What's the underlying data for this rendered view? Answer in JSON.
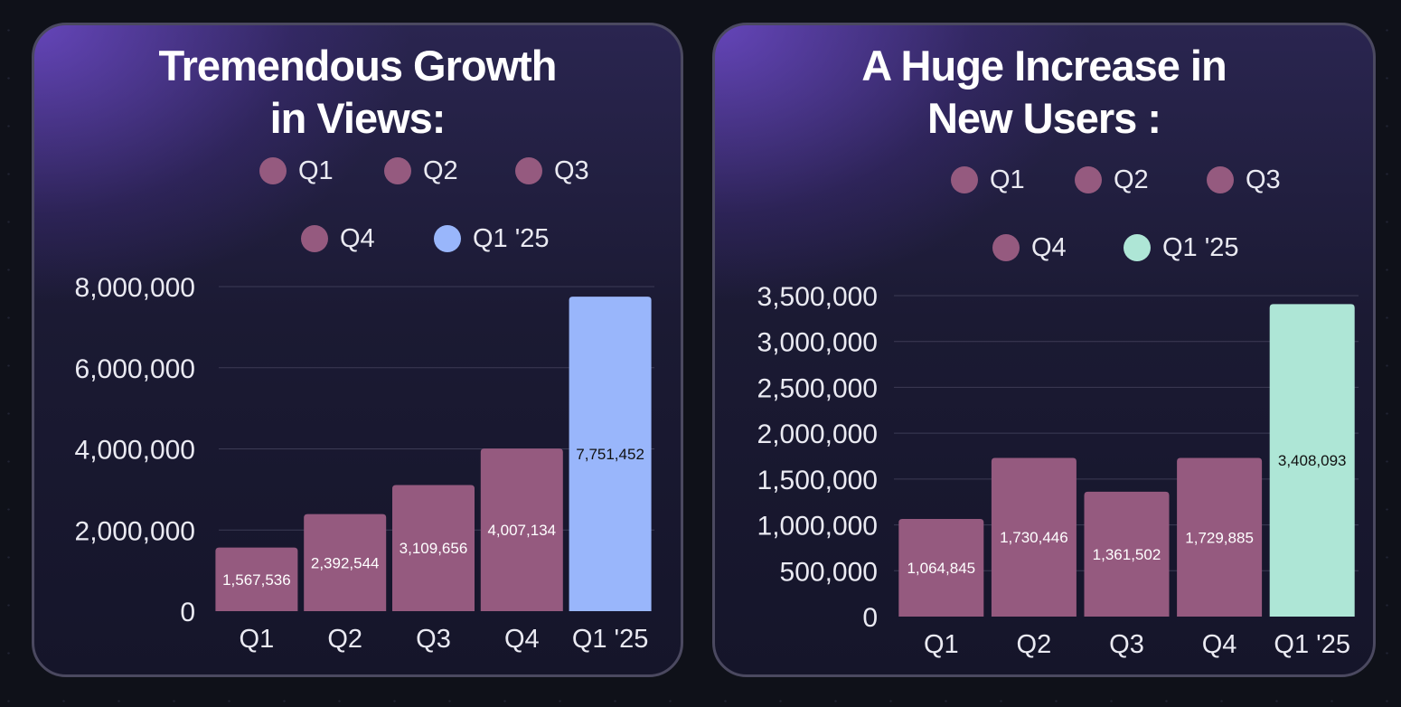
{
  "colors": {
    "bar": "#955a7f",
    "highlight_left": "#99b6fb",
    "highlight_right": "#aee6d6",
    "grid": "#3c3b55"
  },
  "chart_data": [
    {
      "type": "bar",
      "title_line1": "Tremendous Growth",
      "title_line2": "in Views:",
      "categories": [
        "Q1",
        "Q2",
        "Q3",
        "Q4",
        "Q1 '25"
      ],
      "values": [
        1567536,
        2392544,
        3109656,
        4007134,
        7751452
      ],
      "data_labels": [
        "1,567,536",
        "2,392,544",
        "3,109,656",
        "4,007,134",
        "7,751,452"
      ],
      "ylim": [
        0,
        8000000
      ],
      "yticks": [
        "0",
        "2,000,000",
        "4,000,000",
        "6,000,000",
        "8,000,000"
      ],
      "ytick_values": [
        0,
        2000000,
        4000000,
        6000000,
        8000000
      ],
      "legend": [
        "Q1",
        "Q2",
        "Q3",
        "Q4",
        "Q1 '25"
      ],
      "legend_placement": "top",
      "grid": true
    },
    {
      "type": "bar",
      "title_line1": "A Huge Increase in",
      "title_line2": "New Users :",
      "categories": [
        "Q1",
        "Q2",
        "Q3",
        "Q4",
        "Q1 '25"
      ],
      "values": [
        1064845,
        1730446,
        1361502,
        1729885,
        3408093
      ],
      "data_labels": [
        "1,064,845",
        "1,730,446",
        "1,361,502",
        "1,729,885",
        "3,408,093"
      ],
      "ylim": [
        0,
        3500000
      ],
      "yticks": [
        "0",
        "500,000",
        "1,000,000",
        "1,500,000",
        "2,000,000",
        "2,500,000",
        "3,000,000",
        "3,500,000"
      ],
      "ytick_values": [
        0,
        500000,
        1000000,
        1500000,
        2000000,
        2500000,
        3000000,
        3500000
      ],
      "legend": [
        "Q1",
        "Q2",
        "Q3",
        "Q4",
        "Q1 '25"
      ],
      "legend_placement": "top",
      "grid": true
    }
  ]
}
